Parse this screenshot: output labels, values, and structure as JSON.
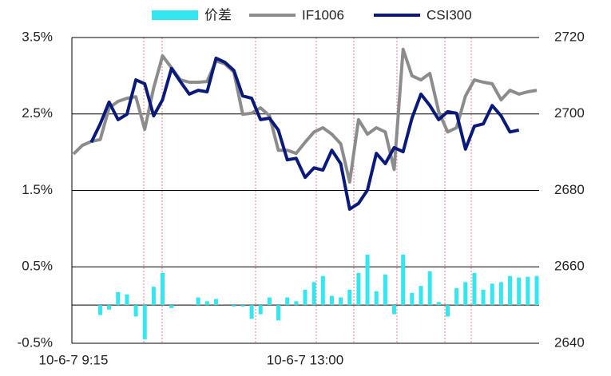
{
  "chart_data": {
    "type": "bar-line",
    "categories": [
      "10-6-7 9:15",
      null,
      null,
      null,
      null,
      null,
      null,
      null,
      null,
      null,
      null,
      null,
      null,
      null,
      null,
      null,
      null,
      null,
      null,
      null,
      null,
      null,
      null,
      null,
      null,
      null,
      "10-6-7 13:00",
      null,
      null,
      null,
      null,
      null,
      null,
      null,
      null,
      null,
      null,
      null,
      null,
      null,
      null,
      null,
      null,
      null,
      null,
      null,
      null,
      null,
      null,
      null,
      null,
      null,
      null
    ],
    "series": [
      {
        "name": "价差",
        "type": "bar",
        "color": "#33e6f0",
        "values": [
          0,
          0,
          0,
          -0.13,
          -0.06,
          0.17,
          0.14,
          -0.15,
          -0.45,
          0.24,
          0.42,
          -0.04,
          0,
          0,
          0.1,
          0.05,
          0.08,
          0,
          -0.02,
          -0.02,
          -0.18,
          -0.12,
          0.1,
          -0.2,
          0.1,
          0.05,
          0.2,
          0.3,
          0.38,
          0.12,
          0.1,
          0.2,
          0.42,
          0.66,
          0.18,
          0.4,
          -0.12,
          0.66,
          0.16,
          0.25,
          0.44,
          0.04,
          -0.15,
          0.22,
          0.3,
          0.42,
          0.2,
          0.28,
          0.3,
          0.38,
          0.36,
          0.37,
          0.38
        ]
      },
      {
        "name": "IF1006",
        "type": "line",
        "axis": "y2",
        "color": "#8c8c8c",
        "values": [
          2689.5,
          2691.8,
          2692.8,
          2693.3,
          2701.6,
          2703.3,
          2704.1,
          2704.5,
          2696.0,
          2706.8,
          2715.2,
          2712.1,
          2708.9,
          2708.3,
          2708.3,
          2708.5,
          2713.9,
          2713.1,
          2711.0,
          2699.9,
          2700.2,
          2701.6,
          2699.5,
          2690.5,
          2690.5,
          2689.7,
          2692.6,
          2695.3,
          2696.4,
          2694.7,
          2692.2,
          2682.2,
          2698.5,
          2694.7,
          2696.4,
          2695.3,
          2685.5,
          2716.9,
          2710.0,
          2708.9,
          2710.6,
          2700.6,
          2695.3,
          2696.4,
          2704.7,
          2708.9,
          2708.3,
          2707.9,
          2703.7,
          2706.2,
          2705.2,
          2705.8,
          2706.2
        ]
      },
      {
        "name": "CSI300",
        "type": "line",
        "axis": "y2",
        "color": "#0a1a7a",
        "values": [
          null,
          null,
          2692.6,
          2697.4,
          2703.1,
          2698.5,
          2699.9,
          2708.9,
          2707.9,
          2699.5,
          2703.7,
          2711.9,
          2708.5,
          2705.2,
          2706.2,
          2705.8,
          2714.6,
          2713.5,
          2711.4,
          2704.7,
          2704.1,
          2698.5,
          2698.9,
          2695.8,
          2688.0,
          2688.4,
          2683.4,
          2685.9,
          2685.3,
          2690.5,
          2687.0,
          2675.1,
          2676.6,
          2680.1,
          2689.7,
          2687.0,
          2691.2,
          2690.1,
          2698.9,
          2705.2,
          2702.2,
          2698.5,
          2700.6,
          2700.2,
          2690.8,
          2696.8,
          2697.4,
          2702.2,
          2699.5,
          2695.3,
          2695.8,
          null,
          null
        ]
      }
    ],
    "ylim": [
      -0.5,
      3.5
    ],
    "yticks": [
      {
        "value": -0.5,
        "label": "-0.5%"
      },
      {
        "value": 0.5,
        "label": "0.5%"
      },
      {
        "value": 1.5,
        "label": "1.5%"
      },
      {
        "value": 2.5,
        "label": "2.5%"
      },
      {
        "value": 3.5,
        "label": "3.5%"
      }
    ],
    "y2lim": [
      2640,
      2720
    ],
    "y2ticks": [
      2640,
      2660,
      2680,
      2700,
      2720
    ],
    "grid": true,
    "legend": "top"
  }
}
